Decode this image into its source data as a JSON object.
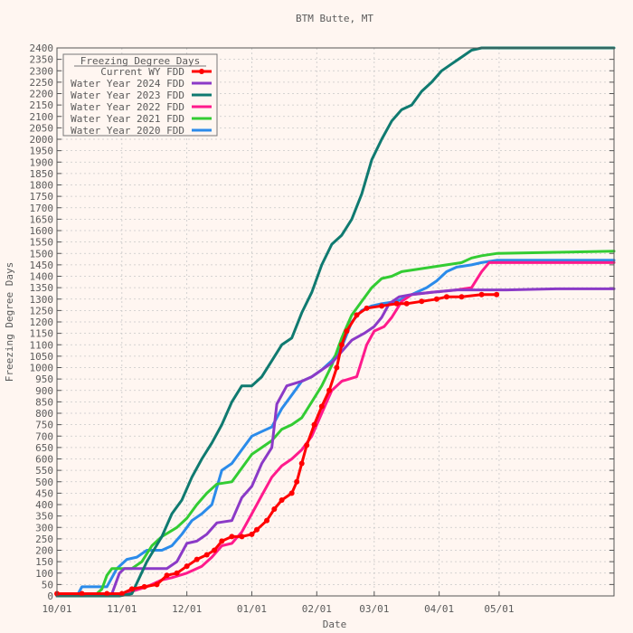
{
  "chart_data": {
    "type": "line",
    "title": "BTM Butte, MT",
    "xlabel": "Date",
    "ylabel": "Freezing Degree Days",
    "xlim": [
      0,
      223
    ],
    "ylim": [
      0,
      2400
    ],
    "y_ticks": [
      0,
      50,
      100,
      150,
      200,
      250,
      300,
      350,
      400,
      450,
      500,
      550,
      600,
      650,
      700,
      750,
      800,
      850,
      900,
      950,
      1000,
      1050,
      1100,
      1150,
      1200,
      1250,
      1300,
      1350,
      1400,
      1450,
      1500,
      1550,
      1600,
      1650,
      1700,
      1750,
      1800,
      1850,
      1900,
      1950,
      2000,
      2050,
      2100,
      2150,
      2200,
      2250,
      2300,
      2350,
      2400
    ],
    "x_ticks": [
      {
        "day": 0,
        "label": "10/01"
      },
      {
        "day": 26,
        "label": "11/01"
      },
      {
        "day": 52,
        "label": "12/01"
      },
      {
        "day": 78,
        "label": "01/01"
      },
      {
        "day": 104,
        "label": "02/01"
      },
      {
        "day": 127,
        "label": "03/01"
      },
      {
        "day": 153,
        "label": "04/01"
      },
      {
        "day": 177,
        "label": "05/01"
      }
    ],
    "grid": true,
    "legend": {
      "title": "Freezing Degree Days",
      "placement": "top-left"
    },
    "series": [
      {
        "name": "Current WY FDD",
        "color": "#ff0000",
        "marker": true,
        "points": [
          [
            0,
            10
          ],
          [
            10,
            10
          ],
          [
            20,
            10
          ],
          [
            26,
            10
          ],
          [
            30,
            30
          ],
          [
            35,
            40
          ],
          [
            40,
            50
          ],
          [
            44,
            90
          ],
          [
            48,
            100
          ],
          [
            52,
            130
          ],
          [
            56,
            160
          ],
          [
            60,
            180
          ],
          [
            63,
            200
          ],
          [
            66,
            240
          ],
          [
            70,
            260
          ],
          [
            74,
            260
          ],
          [
            78,
            270
          ],
          [
            80,
            290
          ],
          [
            84,
            330
          ],
          [
            87,
            380
          ],
          [
            90,
            420
          ],
          [
            94,
            450
          ],
          [
            96,
            500
          ],
          [
            98,
            580
          ],
          [
            100,
            660
          ],
          [
            103,
            750
          ],
          [
            106,
            830
          ],
          [
            109,
            900
          ],
          [
            112,
            1000
          ],
          [
            114,
            1100
          ],
          [
            116,
            1160
          ],
          [
            120,
            1230
          ],
          [
            124,
            1260
          ],
          [
            130,
            1270
          ],
          [
            136,
            1280
          ],
          [
            140,
            1280
          ],
          [
            146,
            1290
          ],
          [
            152,
            1300
          ],
          [
            156,
            1310
          ],
          [
            162,
            1310
          ],
          [
            170,
            1320
          ],
          [
            176,
            1320
          ]
        ]
      },
      {
        "name": "Water Year 2024 FDD",
        "color": "#8b3ac7",
        "marker": false,
        "points": [
          [
            0,
            0
          ],
          [
            20,
            0
          ],
          [
            22,
            10
          ],
          [
            25,
            100
          ],
          [
            27,
            120
          ],
          [
            35,
            120
          ],
          [
            44,
            120
          ],
          [
            48,
            150
          ],
          [
            52,
            230
          ],
          [
            56,
            240
          ],
          [
            60,
            270
          ],
          [
            64,
            320
          ],
          [
            70,
            330
          ],
          [
            74,
            430
          ],
          [
            78,
            480
          ],
          [
            82,
            580
          ],
          [
            86,
            650
          ],
          [
            88,
            840
          ],
          [
            92,
            920
          ],
          [
            98,
            940
          ],
          [
            102,
            960
          ],
          [
            106,
            990
          ],
          [
            110,
            1020
          ],
          [
            114,
            1070
          ],
          [
            118,
            1120
          ],
          [
            123,
            1150
          ],
          [
            127,
            1180
          ],
          [
            130,
            1220
          ],
          [
            133,
            1280
          ],
          [
            137,
            1310
          ],
          [
            142,
            1320
          ],
          [
            150,
            1330
          ],
          [
            160,
            1340
          ],
          [
            170,
            1340
          ],
          [
            180,
            1340
          ],
          [
            200,
            1345
          ],
          [
            223,
            1345
          ]
        ]
      },
      {
        "name": "Water Year 2023 FDD",
        "color": "#0f7a70",
        "marker": false,
        "points": [
          [
            0,
            0
          ],
          [
            25,
            0
          ],
          [
            30,
            10
          ],
          [
            36,
            150
          ],
          [
            42,
            260
          ],
          [
            46,
            360
          ],
          [
            50,
            420
          ],
          [
            54,
            520
          ],
          [
            58,
            600
          ],
          [
            62,
            670
          ],
          [
            66,
            750
          ],
          [
            70,
            850
          ],
          [
            74,
            920
          ],
          [
            78,
            920
          ],
          [
            82,
            960
          ],
          [
            86,
            1030
          ],
          [
            90,
            1100
          ],
          [
            94,
            1130
          ],
          [
            98,
            1240
          ],
          [
            102,
            1330
          ],
          [
            106,
            1450
          ],
          [
            110,
            1540
          ],
          [
            114,
            1580
          ],
          [
            118,
            1650
          ],
          [
            122,
            1760
          ],
          [
            126,
            1910
          ],
          [
            130,
            2000
          ],
          [
            134,
            2080
          ],
          [
            138,
            2130
          ],
          [
            142,
            2150
          ],
          [
            146,
            2210
          ],
          [
            150,
            2250
          ],
          [
            154,
            2300
          ],
          [
            158,
            2330
          ],
          [
            162,
            2360
          ],
          [
            166,
            2390
          ],
          [
            170,
            2400
          ],
          [
            200,
            2400
          ],
          [
            223,
            2400
          ]
        ]
      },
      {
        "name": "Water Year 2022 FDD",
        "color": "#ff1a8c",
        "marker": false,
        "points": [
          [
            0,
            0
          ],
          [
            25,
            0
          ],
          [
            30,
            20
          ],
          [
            36,
            40
          ],
          [
            42,
            70
          ],
          [
            46,
            80
          ],
          [
            52,
            100
          ],
          [
            58,
            130
          ],
          [
            62,
            170
          ],
          [
            66,
            220
          ],
          [
            70,
            230
          ],
          [
            74,
            280
          ],
          [
            78,
            360
          ],
          [
            82,
            440
          ],
          [
            86,
            520
          ],
          [
            90,
            570
          ],
          [
            94,
            600
          ],
          [
            98,
            640
          ],
          [
            102,
            700
          ],
          [
            106,
            800
          ],
          [
            110,
            900
          ],
          [
            114,
            940
          ],
          [
            120,
            960
          ],
          [
            124,
            1100
          ],
          [
            127,
            1160
          ],
          [
            131,
            1180
          ],
          [
            134,
            1220
          ],
          [
            138,
            1290
          ],
          [
            142,
            1320
          ],
          [
            150,
            1330
          ],
          [
            160,
            1340
          ],
          [
            166,
            1350
          ],
          [
            170,
            1420
          ],
          [
            173,
            1460
          ],
          [
            180,
            1460
          ],
          [
            200,
            1460
          ],
          [
            223,
            1460
          ]
        ]
      },
      {
        "name": "Water Year 2021 FDD",
        "color": "#33cc33",
        "marker": false,
        "points": [
          [
            0,
            0
          ],
          [
            15,
            0
          ],
          [
            18,
            30
          ],
          [
            20,
            90
          ],
          [
            22,
            120
          ],
          [
            30,
            120
          ],
          [
            34,
            150
          ],
          [
            38,
            220
          ],
          [
            42,
            260
          ],
          [
            48,
            300
          ],
          [
            52,
            340
          ],
          [
            56,
            400
          ],
          [
            60,
            450
          ],
          [
            64,
            490
          ],
          [
            70,
            500
          ],
          [
            74,
            560
          ],
          [
            78,
            620
          ],
          [
            82,
            650
          ],
          [
            86,
            680
          ],
          [
            90,
            730
          ],
          [
            94,
            750
          ],
          [
            98,
            780
          ],
          [
            102,
            850
          ],
          [
            106,
            920
          ],
          [
            110,
            1010
          ],
          [
            114,
            1130
          ],
          [
            118,
            1230
          ],
          [
            122,
            1290
          ],
          [
            126,
            1350
          ],
          [
            130,
            1390
          ],
          [
            134,
            1400
          ],
          [
            138,
            1420
          ],
          [
            144,
            1430
          ],
          [
            150,
            1440
          ],
          [
            156,
            1450
          ],
          [
            162,
            1460
          ],
          [
            166,
            1480
          ],
          [
            170,
            1490
          ],
          [
            176,
            1500
          ],
          [
            200,
            1505
          ],
          [
            223,
            1510
          ]
        ]
      },
      {
        "name": "Water Year 2020 FDD",
        "color": "#2b8bea",
        "marker": false,
        "points": [
          [
            0,
            0
          ],
          [
            8,
            0
          ],
          [
            10,
            40
          ],
          [
            20,
            40
          ],
          [
            24,
            120
          ],
          [
            28,
            160
          ],
          [
            32,
            170
          ],
          [
            36,
            200
          ],
          [
            42,
            200
          ],
          [
            46,
            220
          ],
          [
            50,
            270
          ],
          [
            54,
            330
          ],
          [
            58,
            360
          ],
          [
            62,
            400
          ],
          [
            66,
            550
          ],
          [
            70,
            580
          ],
          [
            74,
            640
          ],
          [
            78,
            700
          ],
          [
            82,
            720
          ],
          [
            86,
            740
          ],
          [
            90,
            820
          ],
          [
            94,
            880
          ],
          [
            98,
            940
          ],
          [
            102,
            960
          ],
          [
            106,
            990
          ],
          [
            110,
            1030
          ],
          [
            114,
            1090
          ],
          [
            118,
            1200
          ],
          [
            122,
            1250
          ],
          [
            126,
            1270
          ],
          [
            130,
            1280
          ],
          [
            136,
            1290
          ],
          [
            142,
            1320
          ],
          [
            148,
            1350
          ],
          [
            152,
            1380
          ],
          [
            156,
            1420
          ],
          [
            160,
            1440
          ],
          [
            166,
            1450
          ],
          [
            170,
            1460
          ],
          [
            176,
            1470
          ],
          [
            200,
            1470
          ],
          [
            223,
            1470
          ]
        ]
      }
    ]
  }
}
